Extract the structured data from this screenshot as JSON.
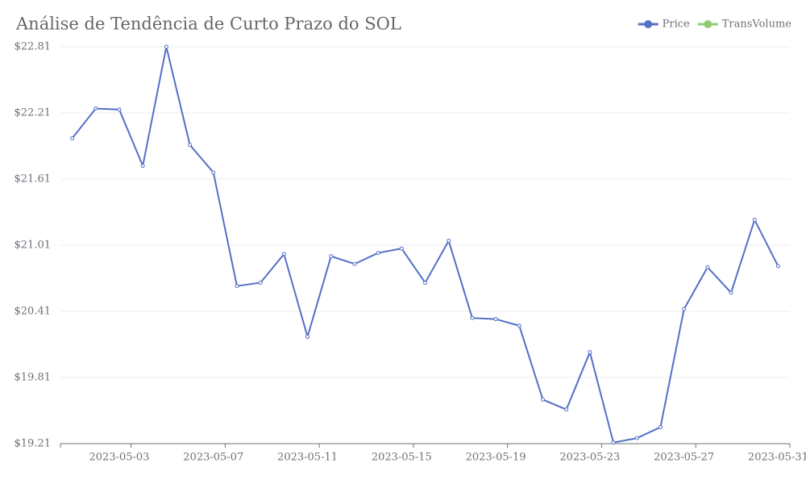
{
  "chart_data": {
    "type": "line",
    "title": "Análise de Tendência de Curto Prazo do SOL",
    "categories": [
      null,
      null,
      "2023-05-03",
      null,
      null,
      null,
      "2023-05-07",
      null,
      null,
      null,
      "2023-05-11",
      null,
      null,
      null,
      "2023-05-15",
      null,
      null,
      null,
      "2023-05-19",
      null,
      null,
      null,
      "2023-05-23",
      null,
      null,
      null,
      "2023-05-27",
      null,
      null,
      null,
      "2023-05-31"
    ],
    "series": [
      {
        "name": "Price",
        "color": "#5470c6",
        "values": [
          21.98,
          22.25,
          22.24,
          21.73,
          22.81,
          21.92,
          21.67,
          20.64,
          20.67,
          20.93,
          20.18,
          20.91,
          20.84,
          20.94,
          20.98,
          20.67,
          21.05,
          20.35,
          20.34,
          20.28,
          19.61,
          19.52,
          20.04,
          19.22,
          19.26,
          19.36,
          20.43,
          20.81,
          20.58,
          21.24,
          20.82
        ]
      },
      {
        "name": "TransVolume",
        "color": "#91cc75",
        "values": [
          null,
          null,
          null,
          null,
          null,
          null,
          null,
          null,
          null,
          null,
          null,
          null,
          null,
          null,
          null,
          null,
          null,
          null,
          null,
          null,
          null,
          null,
          null,
          null,
          null,
          null,
          null,
          null,
          null,
          null,
          null
        ]
      }
    ],
    "ylim": [
      19.21,
      22.81
    ],
    "yticks": [
      {
        "value": 19.21,
        "label": "$19.21"
      },
      {
        "value": 19.81,
        "label": "$19.81"
      },
      {
        "value": 20.41,
        "label": "$20.41"
      },
      {
        "value": 21.01,
        "label": "$21.01"
      },
      {
        "value": 21.61,
        "label": "$21.61"
      },
      {
        "value": 22.21,
        "label": "$22.21"
      },
      {
        "value": 22.81,
        "label": "$22.81"
      }
    ],
    "grid": true
  }
}
